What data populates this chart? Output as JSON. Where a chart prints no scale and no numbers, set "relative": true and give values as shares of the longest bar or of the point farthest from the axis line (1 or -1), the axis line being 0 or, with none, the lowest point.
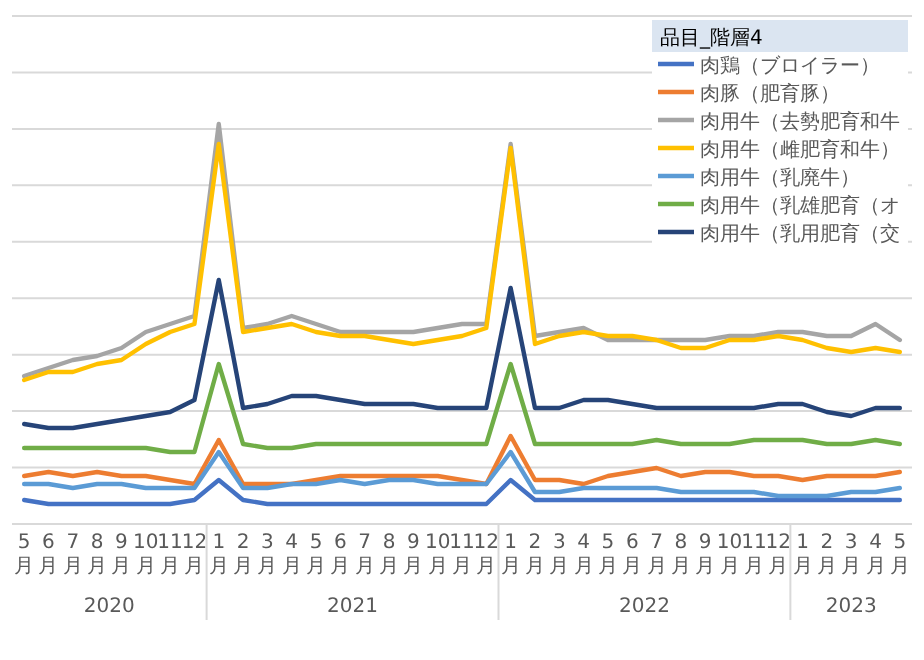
{
  "chart_data": {
    "type": "line",
    "relative": true,
    "grid": true,
    "legend": "top right",
    "legend_title": "品目_階層4",
    "categories": [
      "5月",
      "6月",
      "7月",
      "8月",
      "9月",
      "10月",
      "11月",
      "12月",
      "1月",
      "2月",
      "3月",
      "4月",
      "5月",
      "6月",
      "7月",
      "8月",
      "9月",
      "10月",
      "11月",
      "12月",
      "1月",
      "2月",
      "3月",
      "4月",
      "5月",
      "6月",
      "7月",
      "8月",
      "9月",
      "10月",
      "11月",
      "12月",
      "1月",
      "2月",
      "3月",
      "4月",
      "5月"
    ],
    "series": [
      {
        "name": "肉鶏（ブロイラー）",
        "color": "#4472c4",
        "values": [
          0.06,
          0.05,
          0.05,
          0.05,
          0.05,
          0.05,
          0.05,
          0.06,
          0.11,
          0.06,
          0.05,
          0.05,
          0.05,
          0.05,
          0.05,
          0.05,
          0.05,
          0.05,
          0.05,
          0.05,
          0.11,
          0.06,
          0.06,
          0.06,
          0.06,
          0.06,
          0.06,
          0.06,
          0.06,
          0.06,
          0.06,
          0.06,
          0.06,
          0.06,
          0.06,
          0.06,
          0.06
        ]
      },
      {
        "name": "肉豚（肥育豚）",
        "color": "#ed7d31",
        "values": [
          0.12,
          0.13,
          0.12,
          0.13,
          0.12,
          0.12,
          0.11,
          0.1,
          0.21,
          0.1,
          0.1,
          0.1,
          0.11,
          0.12,
          0.12,
          0.12,
          0.12,
          0.12,
          0.11,
          0.1,
          0.22,
          0.11,
          0.11,
          0.1,
          0.12,
          0.13,
          0.14,
          0.12,
          0.13,
          0.13,
          0.12,
          0.12,
          0.11,
          0.12,
          0.12,
          0.12,
          0.13
        ]
      },
      {
        "name": "肉用牛（去勢肥育和牛",
        "color": "#a5a5a5",
        "values": [
          0.37,
          0.39,
          0.41,
          0.42,
          0.44,
          0.48,
          0.5,
          0.52,
          1.0,
          0.49,
          0.5,
          0.52,
          0.5,
          0.48,
          0.48,
          0.48,
          0.48,
          0.49,
          0.5,
          0.5,
          0.95,
          0.47,
          0.48,
          0.49,
          0.46,
          0.46,
          0.46,
          0.46,
          0.46,
          0.47,
          0.47,
          0.48,
          0.48,
          0.47,
          0.47,
          0.5,
          0.46
        ]
      },
      {
        "name": "肉用牛（雌肥育和牛）",
        "color": "#ffc000",
        "values": [
          0.36,
          0.38,
          0.38,
          0.4,
          0.41,
          0.45,
          0.48,
          0.5,
          0.95,
          0.48,
          0.49,
          0.5,
          0.48,
          0.47,
          0.47,
          0.46,
          0.45,
          0.46,
          0.47,
          0.49,
          0.94,
          0.45,
          0.47,
          0.48,
          0.47,
          0.47,
          0.46,
          0.44,
          0.44,
          0.46,
          0.46,
          0.47,
          0.46,
          0.44,
          0.43,
          0.44,
          0.43
        ]
      },
      {
        "name": "肉用牛（乳廃牛）",
        "color": "#5b9bd5",
        "values": [
          0.1,
          0.1,
          0.09,
          0.1,
          0.1,
          0.09,
          0.09,
          0.09,
          0.18,
          0.09,
          0.09,
          0.1,
          0.1,
          0.11,
          0.1,
          0.11,
          0.11,
          0.1,
          0.1,
          0.1,
          0.18,
          0.08,
          0.08,
          0.09,
          0.09,
          0.09,
          0.09,
          0.08,
          0.08,
          0.08,
          0.08,
          0.07,
          0.07,
          0.07,
          0.08,
          0.08,
          0.09
        ]
      },
      {
        "name": "肉用牛（乳雄肥育（オ",
        "color": "#70ad47",
        "values": [
          0.19,
          0.19,
          0.19,
          0.19,
          0.19,
          0.19,
          0.18,
          0.18,
          0.4,
          0.2,
          0.19,
          0.19,
          0.2,
          0.2,
          0.2,
          0.2,
          0.2,
          0.2,
          0.2,
          0.2,
          0.4,
          0.2,
          0.2,
          0.2,
          0.2,
          0.2,
          0.21,
          0.2,
          0.2,
          0.2,
          0.21,
          0.21,
          0.21,
          0.2,
          0.2,
          0.21,
          0.2
        ]
      },
      {
        "name": "肉用牛（乳用肥育（交",
        "color": "#264478",
        "values": [
          0.25,
          0.24,
          0.24,
          0.25,
          0.26,
          0.27,
          0.28,
          0.31,
          0.61,
          0.29,
          0.3,
          0.32,
          0.32,
          0.31,
          0.3,
          0.3,
          0.3,
          0.29,
          0.29,
          0.29,
          0.59,
          0.29,
          0.29,
          0.31,
          0.31,
          0.3,
          0.29,
          0.29,
          0.29,
          0.29,
          0.29,
          0.3,
          0.3,
          0.28,
          0.27,
          0.29,
          0.29
        ]
      }
    ],
    "annotations": [
      "2020",
      "2021",
      "2022",
      "2023"
    ]
  }
}
